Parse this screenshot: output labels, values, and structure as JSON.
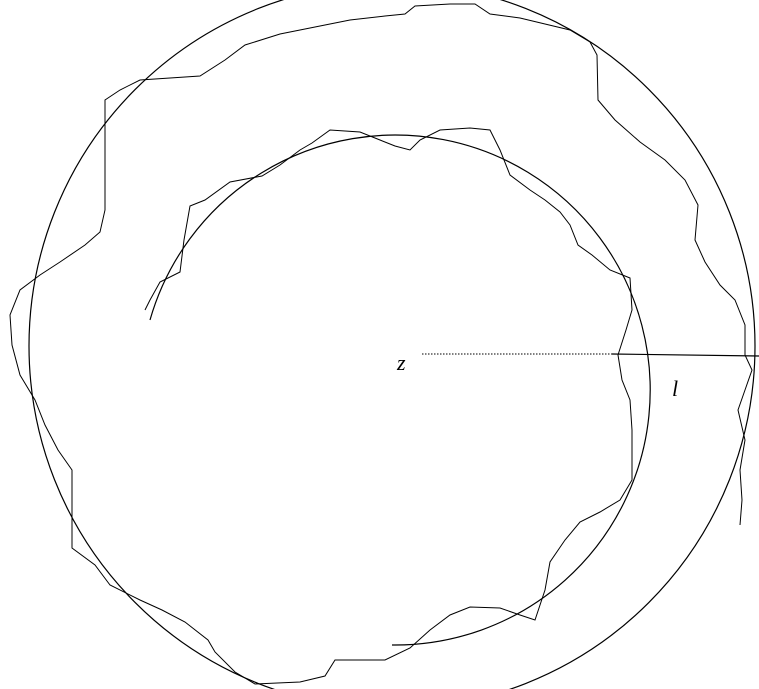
{
  "labels": {
    "center": "z",
    "length": "l"
  }
}
